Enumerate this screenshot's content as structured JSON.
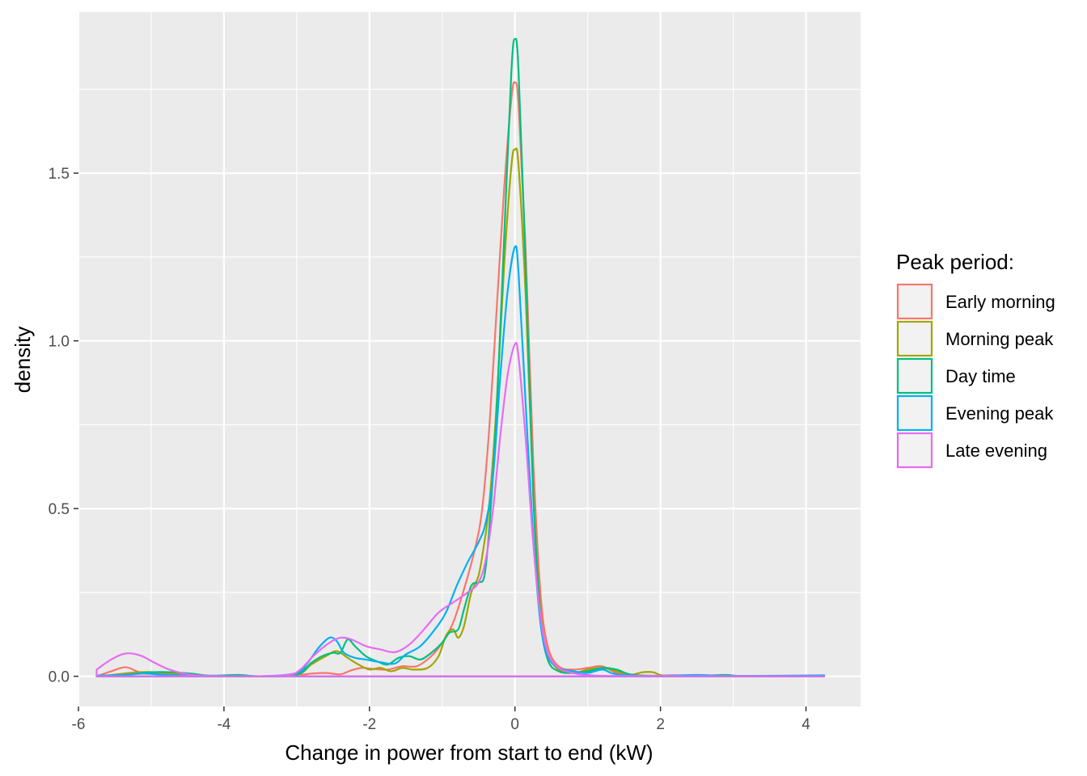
{
  "chart_data": {
    "type": "line",
    "title": "",
    "xlabel": "Change in power from start to end (kW)",
    "ylabel": "density",
    "xlim": [
      -6.0,
      4.75
    ],
    "ylim": [
      -0.09,
      1.98
    ],
    "x_ticks": [
      -6,
      -4,
      -2,
      0,
      2,
      4
    ],
    "x_tick_labels": [
      "-6",
      "-4",
      "-2",
      "0",
      "2",
      "4"
    ],
    "y_ticks": [
      0.0,
      0.5,
      1.0,
      1.5
    ],
    "y_tick_labels": [
      "0.0",
      "0.5",
      "1.0",
      "1.5"
    ],
    "grid": true,
    "background": "#ebebeb",
    "legend": {
      "title": "Peak period:",
      "position": "right"
    },
    "series": [
      {
        "name": "Early morning",
        "color": "#F8766D",
        "points": [
          [
            -5.75,
            0.0
          ],
          [
            -5.55,
            0.015
          ],
          [
            -5.35,
            0.027
          ],
          [
            -5.15,
            0.012
          ],
          [
            -4.9,
            0.01
          ],
          [
            -4.6,
            0.006
          ],
          [
            -4.3,
            0.002
          ],
          [
            -3.5,
            0.0
          ],
          [
            -3.0,
            0.003
          ],
          [
            -2.8,
            0.008
          ],
          [
            -2.6,
            0.01
          ],
          [
            -2.4,
            0.006
          ],
          [
            -2.25,
            0.018
          ],
          [
            -2.1,
            0.025
          ],
          [
            -1.95,
            0.022
          ],
          [
            -1.75,
            0.02
          ],
          [
            -1.55,
            0.03
          ],
          [
            -1.35,
            0.03
          ],
          [
            -1.15,
            0.06
          ],
          [
            -1.0,
            0.1
          ],
          [
            -0.85,
            0.16
          ],
          [
            -0.7,
            0.26
          ],
          [
            -0.55,
            0.38
          ],
          [
            -0.45,
            0.5
          ],
          [
            -0.35,
            0.75
          ],
          [
            -0.25,
            1.1
          ],
          [
            -0.15,
            1.45
          ],
          [
            -0.05,
            1.72
          ],
          [
            0.0,
            1.77
          ],
          [
            0.05,
            1.7
          ],
          [
            0.15,
            1.25
          ],
          [
            0.25,
            0.65
          ],
          [
            0.35,
            0.25
          ],
          [
            0.45,
            0.09
          ],
          [
            0.6,
            0.03
          ],
          [
            0.8,
            0.02
          ],
          [
            1.0,
            0.025
          ],
          [
            1.2,
            0.03
          ],
          [
            1.4,
            0.01
          ],
          [
            1.7,
            0.002
          ],
          [
            2.2,
            0.003
          ],
          [
            2.5,
            0.001
          ],
          [
            3.0,
            0.001
          ],
          [
            4.25,
            0.001
          ]
        ]
      },
      {
        "name": "Morning peak",
        "color": "#A3A500",
        "points": [
          [
            -5.75,
            0.0
          ],
          [
            -5.5,
            0.005
          ],
          [
            -5.2,
            0.012
          ],
          [
            -4.9,
            0.012
          ],
          [
            -4.6,
            0.006
          ],
          [
            -4.4,
            0.002
          ],
          [
            -3.5,
            0.0
          ],
          [
            -3.0,
            0.004
          ],
          [
            -2.8,
            0.035
          ],
          [
            -2.6,
            0.06
          ],
          [
            -2.45,
            0.075
          ],
          [
            -2.3,
            0.055
          ],
          [
            -2.15,
            0.035
          ],
          [
            -2.0,
            0.02
          ],
          [
            -1.85,
            0.025
          ],
          [
            -1.7,
            0.015
          ],
          [
            -1.55,
            0.025
          ],
          [
            -1.4,
            0.02
          ],
          [
            -1.2,
            0.025
          ],
          [
            -1.05,
            0.06
          ],
          [
            -0.95,
            0.12
          ],
          [
            -0.85,
            0.14
          ],
          [
            -0.78,
            0.115
          ],
          [
            -0.7,
            0.15
          ],
          [
            -0.6,
            0.25
          ],
          [
            -0.5,
            0.3
          ],
          [
            -0.42,
            0.4
          ],
          [
            -0.35,
            0.52
          ],
          [
            -0.25,
            0.82
          ],
          [
            -0.15,
            1.22
          ],
          [
            -0.05,
            1.52
          ],
          [
            0.0,
            1.57
          ],
          [
            0.05,
            1.52
          ],
          [
            0.15,
            1.12
          ],
          [
            0.25,
            0.55
          ],
          [
            0.35,
            0.2
          ],
          [
            0.45,
            0.07
          ],
          [
            0.6,
            0.02
          ],
          [
            0.8,
            0.01
          ],
          [
            1.0,
            0.02
          ],
          [
            1.2,
            0.025
          ],
          [
            1.4,
            0.015
          ],
          [
            1.6,
            0.005
          ],
          [
            1.75,
            0.012
          ],
          [
            1.9,
            0.012
          ],
          [
            2.05,
            0.002
          ],
          [
            2.5,
            0.0
          ],
          [
            4.25,
            0.0
          ]
        ]
      },
      {
        "name": "Day time",
        "color": "#00BF7D",
        "points": [
          [
            -5.75,
            0.0
          ],
          [
            -5.3,
            0.005
          ],
          [
            -5.0,
            0.012
          ],
          [
            -4.7,
            0.012
          ],
          [
            -4.45,
            0.008
          ],
          [
            -4.2,
            0.002
          ],
          [
            -3.8,
            0.004
          ],
          [
            -3.5,
            0.0
          ],
          [
            -3.0,
            0.005
          ],
          [
            -2.8,
            0.04
          ],
          [
            -2.65,
            0.06
          ],
          [
            -2.5,
            0.07
          ],
          [
            -2.4,
            0.07
          ],
          [
            -2.3,
            0.11
          ],
          [
            -2.2,
            0.09
          ],
          [
            -2.05,
            0.06
          ],
          [
            -1.9,
            0.045
          ],
          [
            -1.75,
            0.035
          ],
          [
            -1.6,
            0.055
          ],
          [
            -1.45,
            0.06
          ],
          [
            -1.3,
            0.05
          ],
          [
            -1.15,
            0.07
          ],
          [
            -1.0,
            0.1
          ],
          [
            -0.9,
            0.13
          ],
          [
            -0.78,
            0.14
          ],
          [
            -0.7,
            0.2
          ],
          [
            -0.6,
            0.27
          ],
          [
            -0.5,
            0.28
          ],
          [
            -0.42,
            0.3
          ],
          [
            -0.35,
            0.45
          ],
          [
            -0.25,
            0.8
          ],
          [
            -0.15,
            1.3
          ],
          [
            -0.05,
            1.8
          ],
          [
            0.0,
            1.9
          ],
          [
            0.05,
            1.8
          ],
          [
            0.15,
            1.2
          ],
          [
            0.25,
            0.55
          ],
          [
            0.35,
            0.18
          ],
          [
            0.45,
            0.05
          ],
          [
            0.6,
            0.015
          ],
          [
            0.8,
            0.01
          ],
          [
            1.0,
            0.015
          ],
          [
            1.2,
            0.025
          ],
          [
            1.4,
            0.02
          ],
          [
            1.6,
            0.005
          ],
          [
            2.0,
            0.001
          ],
          [
            2.6,
            0.002
          ],
          [
            2.9,
            0.004
          ],
          [
            3.2,
            0.0
          ],
          [
            4.25,
            0.001
          ]
        ]
      },
      {
        "name": "Evening peak",
        "color": "#00B0F6",
        "points": [
          [
            -5.75,
            0.002
          ],
          [
            -5.4,
            0.004
          ],
          [
            -5.1,
            0.008
          ],
          [
            -4.8,
            0.004
          ],
          [
            -4.4,
            0.002
          ],
          [
            -3.5,
            0.0
          ],
          [
            -3.0,
            0.01
          ],
          [
            -2.85,
            0.04
          ],
          [
            -2.7,
            0.085
          ],
          [
            -2.55,
            0.115
          ],
          [
            -2.45,
            0.105
          ],
          [
            -2.35,
            0.07
          ],
          [
            -2.2,
            0.055
          ],
          [
            -2.05,
            0.05
          ],
          [
            -1.85,
            0.042
          ],
          [
            -1.65,
            0.038
          ],
          [
            -1.5,
            0.065
          ],
          [
            -1.3,
            0.09
          ],
          [
            -1.1,
            0.14
          ],
          [
            -0.95,
            0.19
          ],
          [
            -0.8,
            0.27
          ],
          [
            -0.65,
            0.34
          ],
          [
            -0.5,
            0.4
          ],
          [
            -0.4,
            0.46
          ],
          [
            -0.3,
            0.6
          ],
          [
            -0.2,
            0.9
          ],
          [
            -0.1,
            1.15
          ],
          [
            0.0,
            1.28
          ],
          [
            0.05,
            1.2
          ],
          [
            0.15,
            0.8
          ],
          [
            0.25,
            0.42
          ],
          [
            0.35,
            0.16
          ],
          [
            0.45,
            0.06
          ],
          [
            0.6,
            0.025
          ],
          [
            0.8,
            0.015
          ],
          [
            1.0,
            0.01
          ],
          [
            1.2,
            0.02
          ],
          [
            1.35,
            0.008
          ],
          [
            1.6,
            0.002
          ],
          [
            2.0,
            0.001
          ],
          [
            2.5,
            0.004
          ],
          [
            3.0,
            0.001
          ],
          [
            4.25,
            0.003
          ]
        ]
      },
      {
        "name": "Late evening",
        "color": "#E76BF3",
        "points": [
          [
            -5.75,
            0.02
          ],
          [
            -5.55,
            0.05
          ],
          [
            -5.35,
            0.068
          ],
          [
            -5.15,
            0.062
          ],
          [
            -4.95,
            0.04
          ],
          [
            -4.75,
            0.02
          ],
          [
            -4.5,
            0.006
          ],
          [
            -4.2,
            0.001
          ],
          [
            -3.5,
            0.0
          ],
          [
            -3.1,
            0.005
          ],
          [
            -2.95,
            0.02
          ],
          [
            -2.75,
            0.065
          ],
          [
            -2.55,
            0.1
          ],
          [
            -2.4,
            0.115
          ],
          [
            -2.25,
            0.11
          ],
          [
            -2.05,
            0.09
          ],
          [
            -1.85,
            0.08
          ],
          [
            -1.65,
            0.072
          ],
          [
            -1.45,
            0.095
          ],
          [
            -1.25,
            0.14
          ],
          [
            -1.05,
            0.19
          ],
          [
            -0.85,
            0.22
          ],
          [
            -0.65,
            0.25
          ],
          [
            -0.5,
            0.28
          ],
          [
            -0.4,
            0.35
          ],
          [
            -0.3,
            0.5
          ],
          [
            -0.2,
            0.72
          ],
          [
            -0.1,
            0.9
          ],
          [
            0.0,
            0.99
          ],
          [
            0.05,
            0.95
          ],
          [
            0.15,
            0.7
          ],
          [
            0.25,
            0.4
          ],
          [
            0.35,
            0.18
          ],
          [
            0.45,
            0.07
          ],
          [
            0.6,
            0.025
          ],
          [
            0.8,
            0.01
          ],
          [
            1.0,
            0.004
          ],
          [
            1.5,
            0.001
          ],
          [
            4.25,
            0.0
          ]
        ]
      }
    ]
  }
}
